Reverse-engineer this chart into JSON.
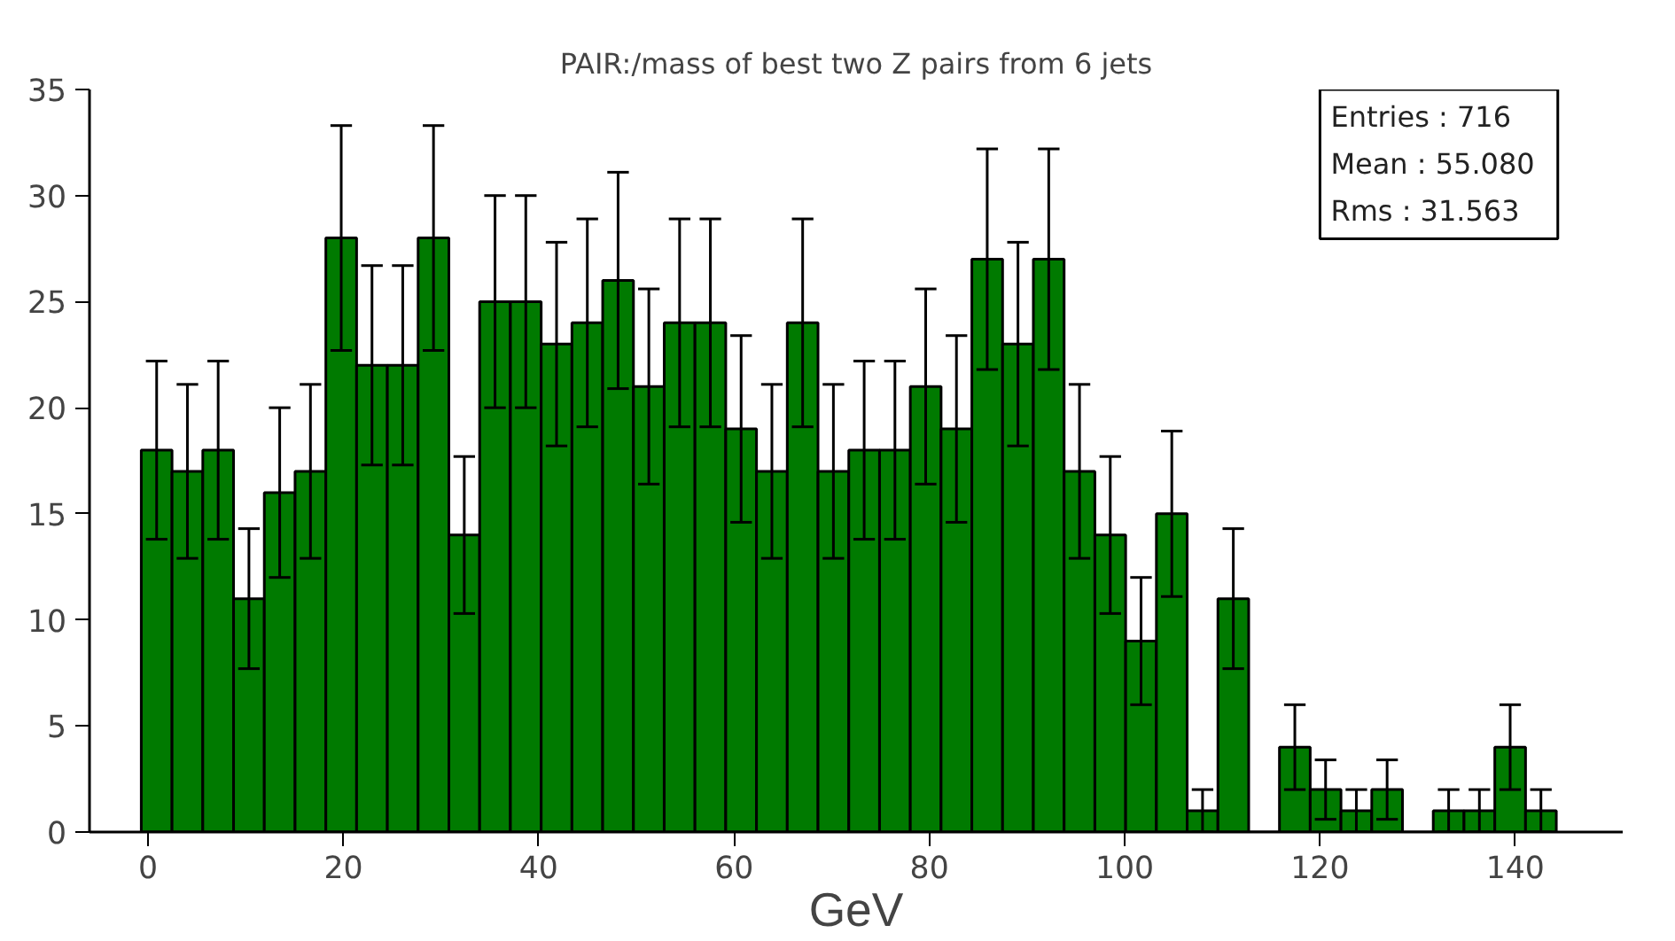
{
  "chart_data": {
    "type": "histogram",
    "title": "PAIR:/mass of best two Z pairs from 6 jets",
    "xlabel": "GeV",
    "bins": [
      -0.7,
      2.45,
      5.6,
      8.75,
      11.9,
      15.05,
      18.2,
      21.35,
      24.5,
      27.65,
      30.8,
      33.95,
      37.1,
      40.25,
      43.4,
      46.55,
      49.7,
      52.85,
      56.0,
      59.15,
      62.3,
      65.45,
      68.6,
      71.75,
      74.9,
      78.05,
      81.2,
      84.35,
      87.5,
      90.65,
      93.8,
      96.95,
      100.1,
      103.25,
      106.4,
      109.55,
      112.7,
      115.85,
      119.0,
      122.15,
      125.3,
      128.45,
      131.6,
      134.75,
      137.9,
      141.05,
      144.2
    ],
    "values": [
      18,
      17,
      18,
      11,
      16,
      17,
      28,
      22,
      22,
      28,
      14,
      25,
      25,
      23,
      24,
      26,
      21,
      24,
      24,
      19,
      17,
      24,
      17,
      18,
      18,
      21,
      19,
      27,
      23,
      27,
      17,
      14,
      9,
      15,
      1,
      11,
      0,
      4,
      2,
      1,
      2,
      0,
      1,
      1,
      4,
      1
    ],
    "errors": [
      4.2,
      4.1,
      4.2,
      3.3,
      4.0,
      4.1,
      5.3,
      4.7,
      4.7,
      5.3,
      3.7,
      5.0,
      5.0,
      4.8,
      4.9,
      5.1,
      4.6,
      4.9,
      4.9,
      4.4,
      4.1,
      4.9,
      4.1,
      4.2,
      4.2,
      4.6,
      4.4,
      5.2,
      4.8,
      5.2,
      4.1,
      3.7,
      3.0,
      3.9,
      1.0,
      3.3,
      null,
      2.0,
      1.4,
      1.0,
      1.4,
      null,
      1.0,
      1.0,
      2.0,
      1.0
    ],
    "color": "#007a00",
    "xlim": [
      -6,
      151
    ],
    "ylim": [
      0,
      35
    ],
    "xticks": [
      0,
      20,
      40,
      60,
      80,
      100,
      120,
      140
    ],
    "yticks": [
      0,
      5,
      10,
      15,
      20,
      25,
      30,
      35
    ],
    "grid": false,
    "annotations": [
      "Entries :     716",
      "Mean : 55.080",
      "Rms :   31.563"
    ]
  }
}
